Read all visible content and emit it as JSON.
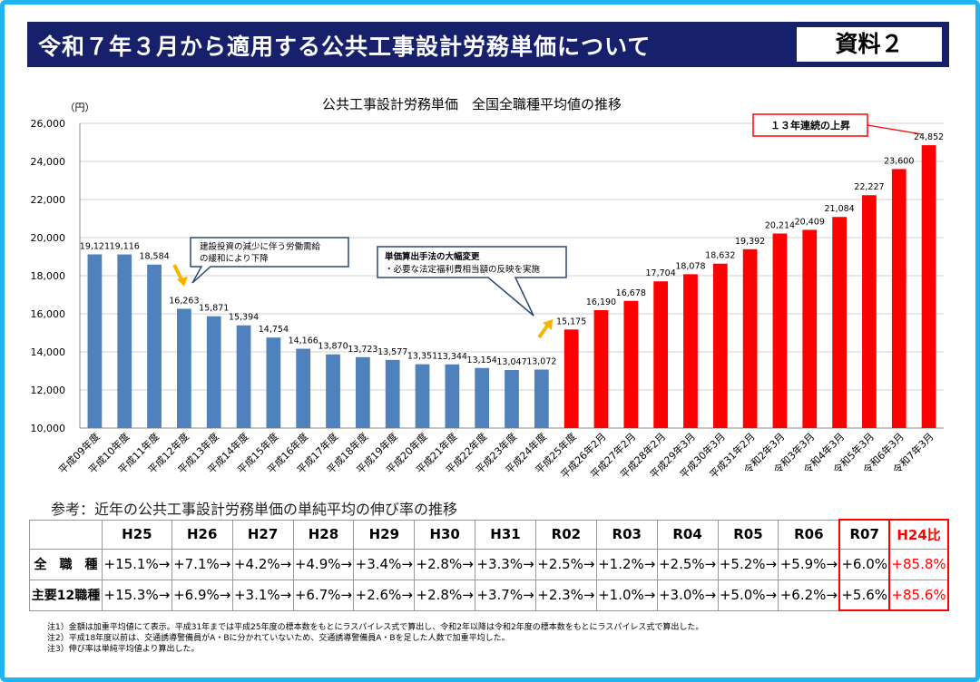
{
  "header": {
    "title": "令和７年３月から適用する公共工事設計労務単価について",
    "doc_label": "資料２"
  },
  "chart_data": {
    "type": "bar",
    "title": "公共工事設計労務単価　全国全職種平均値の推移",
    "ylabel": "（円）",
    "ylim": [
      10000,
      26000
    ],
    "yticks": [
      "10,000",
      "12,000",
      "14,000",
      "16,000",
      "18,000",
      "20,000",
      "22,000",
      "24,000",
      "26,000"
    ],
    "grid": true,
    "categories": [
      "平成09年度",
      "平成10年度",
      "平成11年度",
      "平成12年度",
      "平成13年度",
      "平成14年度",
      "平成15年度",
      "平成16年度",
      "平成17年度",
      "平成18年度",
      "平成19年度",
      "平成20年度",
      "平成21年度",
      "平成22年度",
      "平成23年度",
      "平成24年度",
      "平成25年度",
      "平成26年2月",
      "平成27年2月",
      "平成28年2月",
      "平成29年3月",
      "平成30年3月",
      "平成31年2月",
      "令和2年3月",
      "令和3年3月",
      "令和4年3月",
      "令和5年3月",
      "令和6年3月",
      "令和7年3月"
    ],
    "values": [
      19121,
      19116,
      18584,
      16263,
      15871,
      15394,
      14754,
      14166,
      13870,
      13723,
      13577,
      13351,
      13344,
      13154,
      13047,
      13072,
      15175,
      16190,
      16678,
      17704,
      18078,
      18632,
      19392,
      20214,
      20409,
      21084,
      22227,
      23600,
      24852
    ],
    "labels": [
      "19,121",
      "19,116",
      "18,584",
      "16,263",
      "15,871",
      "15,394",
      "14,754",
      "14,166",
      "13,870",
      "13,723",
      "13,577",
      "13,351",
      "13,344",
      "13,154",
      "13,047",
      "13,072",
      "15,175",
      "16,190",
      "16,678",
      "17,704",
      "18,078",
      "18,632",
      "19,392",
      "20,214",
      "20,409",
      "21,084",
      "22,227",
      "23,600",
      "24,852"
    ],
    "colors": {
      "before": "#4f81bd",
      "after": "#ff0000"
    },
    "annotations": {
      "decline": [
        "建設投資の減少に伴う労働需給",
        "の緩和により下降"
      ],
      "method_title": "単価算出手法の大幅変更",
      "method_detail": "・必要な法定福利費相当額の反映を実施",
      "streak": "１３年連続の上昇"
    }
  },
  "reference": {
    "title": "参考：近年の公共工事設計労務単価の単純平均の伸び率の推移",
    "headers": [
      "",
      "H25",
      "H26",
      "H27",
      "H28",
      "H29",
      "H30",
      "H31",
      "R02",
      "R03",
      "R04",
      "R05",
      "R06",
      "R07",
      "H24比"
    ],
    "rows": [
      {
        "label": "全　職　種",
        "values": [
          "+15.1%→",
          "+7.1%→",
          "+4.2%→",
          "+4.9%→",
          "+3.4%→",
          "+2.8%→",
          "+3.3%→",
          "+2.5%→",
          "+1.2%→",
          "+2.5%→",
          "+5.2%→",
          "+5.9%→",
          "+6.0%",
          "+85.8%"
        ]
      },
      {
        "label": "主要12職種",
        "values": [
          "+15.3%→",
          "+6.9%→",
          "+3.1%→",
          "+6.7%→",
          "+2.6%→",
          "+2.8%→",
          "+3.7%→",
          "+2.3%→",
          "+1.0%→",
          "+3.0%→",
          "+5.0%→",
          "+6.2%→",
          "+5.6%",
          "+85.6%"
        ]
      }
    ]
  },
  "notes": [
    "注1）金額は加重平均値にて表示。平成31年までは平成25年度の標本数をもとにラスパイレス式で算出し、令和2年以降は令和2年度の標本数をもとにラスパイレス式で算出した。",
    "注2）平成18年度以前は、交通誘導警備員がA・Bに分かれていないため、交通誘導警備員A・Bを足した人数で加重平均した。",
    "注3）伸び率は単純平均値より算出した。"
  ]
}
